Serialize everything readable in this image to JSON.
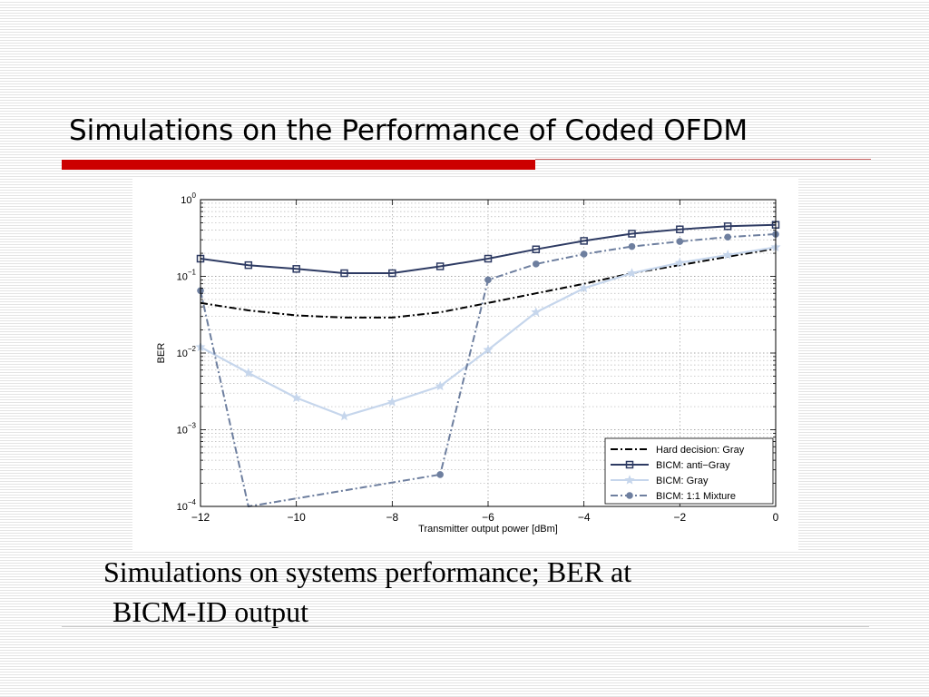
{
  "slide": {
    "title": "Simulations on the Performance of Coded OFDM",
    "caption_line1": "Simulations on systems performance; BER at",
    "caption_line2": "BICM-ID output"
  },
  "colors": {
    "accent_red": "#cc0000",
    "thin_rule": "#cc6666",
    "hard_decision": "#000000",
    "anti_gray": "#2e3b63",
    "gray": "#c6d6ec",
    "mixture": "#6e7f9f"
  },
  "chart_data": {
    "type": "line",
    "title": "",
    "xlabel": "Transmitter output power [dBm]",
    "ylabel": "BER",
    "xlim": [
      -12,
      0
    ],
    "ylim": [
      0.0001,
      1
    ],
    "y_scale": "log",
    "grid": true,
    "legend_position": "bottom-right",
    "x_ticks": [
      -12,
      -10,
      -8,
      -6,
      -4,
      -2,
      0
    ],
    "x_tick_labels": [
      "−12",
      "−10",
      "−8",
      "−6",
      "−4",
      "−2",
      "0"
    ],
    "y_ticks": [
      0.0001,
      0.001,
      0.01,
      0.1,
      1
    ],
    "y_tick_base": "10",
    "y_tick_exponents": [
      "−4",
      "−3",
      "−2",
      "−1",
      "0"
    ],
    "series": [
      {
        "name": "Hard decision: Gray",
        "style": "dash-dot",
        "marker": "none",
        "color": "#000000",
        "x": [
          -12,
          -11,
          -10,
          -9,
          -8,
          -7,
          -6,
          -5,
          -4,
          -3,
          -2,
          -1,
          0
        ],
        "y": [
          0.045,
          0.036,
          0.031,
          0.029,
          0.029,
          0.034,
          0.045,
          0.06,
          0.08,
          0.11,
          0.14,
          0.18,
          0.23
        ]
      },
      {
        "name": "BICM: anti−Gray",
        "style": "solid",
        "marker": "square",
        "color": "#2e3b63",
        "x": [
          -12,
          -11,
          -10,
          -9,
          -8,
          -7,
          -6,
          -5,
          -4,
          -3,
          -2,
          -1,
          0
        ],
        "y": [
          0.17,
          0.14,
          0.125,
          0.11,
          0.11,
          0.135,
          0.17,
          0.225,
          0.29,
          0.36,
          0.41,
          0.45,
          0.47
        ]
      },
      {
        "name": "BICM: Gray",
        "style": "solid",
        "marker": "star",
        "color": "#c6d6ec",
        "x": [
          -12,
          -11,
          -10,
          -9,
          -8,
          -7,
          -6,
          -5,
          -4,
          -3,
          -2,
          -1,
          0
        ],
        "y": [
          0.012,
          0.0055,
          0.0026,
          0.0015,
          0.0023,
          0.0037,
          0.011,
          0.034,
          0.07,
          0.11,
          0.15,
          0.19,
          0.24
        ]
      },
      {
        "name": "BICM: 1:1 Mixture",
        "style": "dash-dot",
        "marker": "circle",
        "color": "#6e7f9f",
        "x": [
          -12,
          -11,
          -7,
          -6,
          -5,
          -4,
          -3,
          -2,
          -1,
          0
        ],
        "y": [
          0.065,
          0.0001,
          0.00026,
          0.09,
          0.145,
          0.195,
          0.245,
          0.285,
          0.325,
          0.355
        ]
      }
    ]
  }
}
